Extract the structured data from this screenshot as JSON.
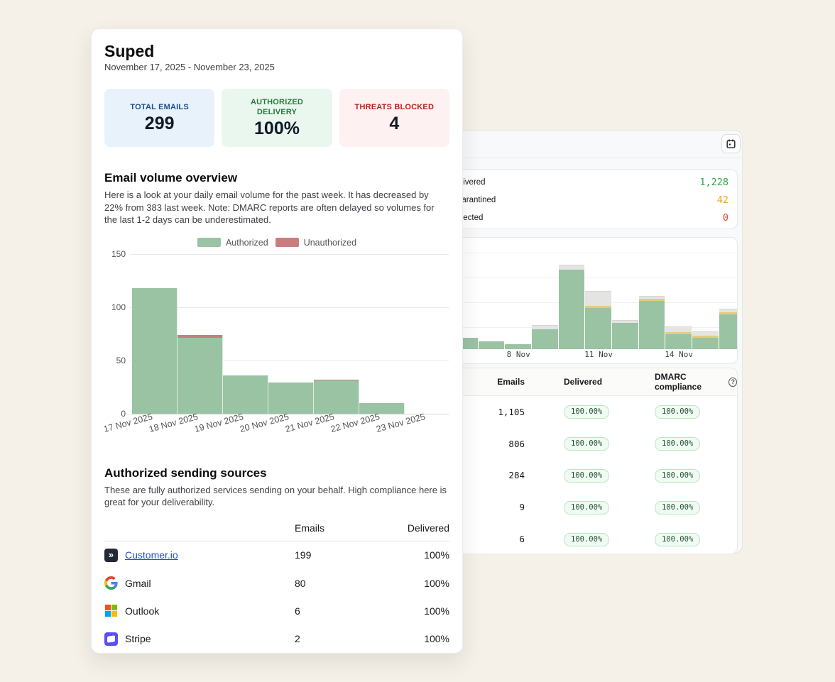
{
  "page": {
    "background": "#f6f1e8"
  },
  "report_card": {
    "title": "Suped",
    "date_range": "November 17, 2025 - November 23, 2025",
    "stats": [
      {
        "label": "TOTAL EMAILS",
        "value": "299",
        "bg": "#e8f2fb",
        "label_color": "#1f4e8c"
      },
      {
        "label": "AUTHORIZED DELIVERY",
        "value": "100%",
        "bg": "#e9f7ee",
        "label_color": "#27793c"
      },
      {
        "label": "THREATS BLOCKED",
        "value": "4",
        "bg": "#fdf1f1",
        "label_color": "#b42318"
      }
    ],
    "volume_section": {
      "heading": "Email volume overview",
      "description": "Here is a look at your daily email volume for the past week. It has decreased by 22% from 383 last week. Note: DMARC reports are often delayed so volumes for the last 1-2 days can be underestimated.",
      "legend": [
        {
          "label": "Authorized",
          "color": "#9ac3a4"
        },
        {
          "label": "Unauthorized",
          "color": "#c97d7d"
        }
      ]
    },
    "sources_section": {
      "heading": "Authorized sending sources",
      "description": "These are fully authorized services sending on your behalf. High compliance here is great for your deliverability.",
      "table": {
        "columns": [
          "Emails",
          "Delivered"
        ],
        "rows": [
          {
            "name": "Customer.io",
            "icon": "customerio-icon",
            "emails": "199",
            "delivered": "100%",
            "link": true
          },
          {
            "name": "Gmail",
            "icon": "gmail-icon",
            "emails": "80",
            "delivered": "100%",
            "link": false
          },
          {
            "name": "Outlook",
            "icon": "microsoft-icon",
            "emails": "6",
            "delivered": "100%",
            "link": false
          },
          {
            "name": "Stripe",
            "icon": "stripe-icon",
            "emails": "2",
            "delivered": "100%",
            "link": false
          }
        ]
      }
    }
  },
  "dashboard_card": {
    "toolbar": {
      "calendar_icon": "calendar-icon"
    },
    "stats": [
      {
        "label": "Delivered",
        "value": "1,228",
        "color": "#2da44e"
      },
      {
        "label": "Quarantined",
        "value": "42",
        "color": "#e9a51f"
      },
      {
        "label": "Rejected",
        "value": "0",
        "color": "#e5432f"
      }
    ],
    "table": {
      "columns": [
        "Emails",
        "Delivered",
        "DMARC compliance"
      ],
      "help_icon": "?",
      "rows": [
        {
          "emails": "1,105",
          "delivered": "100.00%",
          "dmarc": "100.00%"
        },
        {
          "emails": "806",
          "delivered": "100.00%",
          "dmarc": "100.00%"
        },
        {
          "emails": "284",
          "delivered": "100.00%",
          "dmarc": "100.00%"
        },
        {
          "emails": "9",
          "delivered": "100.00%",
          "dmarc": "100.00%"
        },
        {
          "emails": "6",
          "delivered": "100.00%",
          "dmarc": "100.00%"
        }
      ]
    }
  },
  "chart_data": [
    {
      "type": "bar",
      "title": "Email volume overview (daily, stacked)",
      "categories": [
        "17 Nov 2025",
        "18 Nov 2025",
        "19 Nov 2025",
        "20 Nov 2025",
        "21 Nov 2025",
        "22 Nov 2025",
        "23 Nov 2025"
      ],
      "series": [
        {
          "name": "Authorized",
          "color": "#9ac3a4",
          "values": [
            118,
            71,
            36,
            29,
            31,
            10,
            0
          ]
        },
        {
          "name": "Unauthorized",
          "color": "#c97d7d",
          "values": [
            0,
            3,
            0,
            0,
            1,
            0,
            0
          ]
        }
      ],
      "xlabel": "",
      "ylabel": "",
      "ylim": [
        0,
        150
      ],
      "yticks": [
        0,
        50,
        100,
        150
      ],
      "grid": true,
      "legend_position": "top-center"
    },
    {
      "type": "bar",
      "title": "Dashboard email volume (stacked, y-axis not labeled; values are approximate pixel heights)",
      "x_tick_labels": [
        {
          "label": "8 Nov",
          "slot": 2
        },
        {
          "label": "11 Nov",
          "slot": 5
        },
        {
          "label": "14 Nov",
          "slot": 8
        }
      ],
      "series_colors": {
        "green": "#9ac3a4",
        "yellow": "#e2cd7d",
        "gray": "#e4e4e3"
      },
      "bars": [
        {
          "green": 16,
          "yellow": 0,
          "gray": 0
        },
        {
          "green": 11,
          "yellow": 0,
          "gray": 0
        },
        {
          "green": 7,
          "yellow": 0,
          "gray": 0
        },
        {
          "green": 28,
          "yellow": 0,
          "gray": 6
        },
        {
          "green": 112,
          "yellow": 0,
          "gray": 7
        },
        {
          "green": 58,
          "yellow": 3,
          "gray": 21
        },
        {
          "green": 37,
          "yellow": 0,
          "gray": 4
        },
        {
          "green": 68,
          "yellow": 3,
          "gray": 4
        },
        {
          "green": 21,
          "yellow": 3,
          "gray": 8
        },
        {
          "green": 16,
          "yellow": 3,
          "gray": 6
        },
        {
          "green": 49,
          "yellow": 3,
          "gray": 5
        }
      ],
      "grid": true
    }
  ]
}
